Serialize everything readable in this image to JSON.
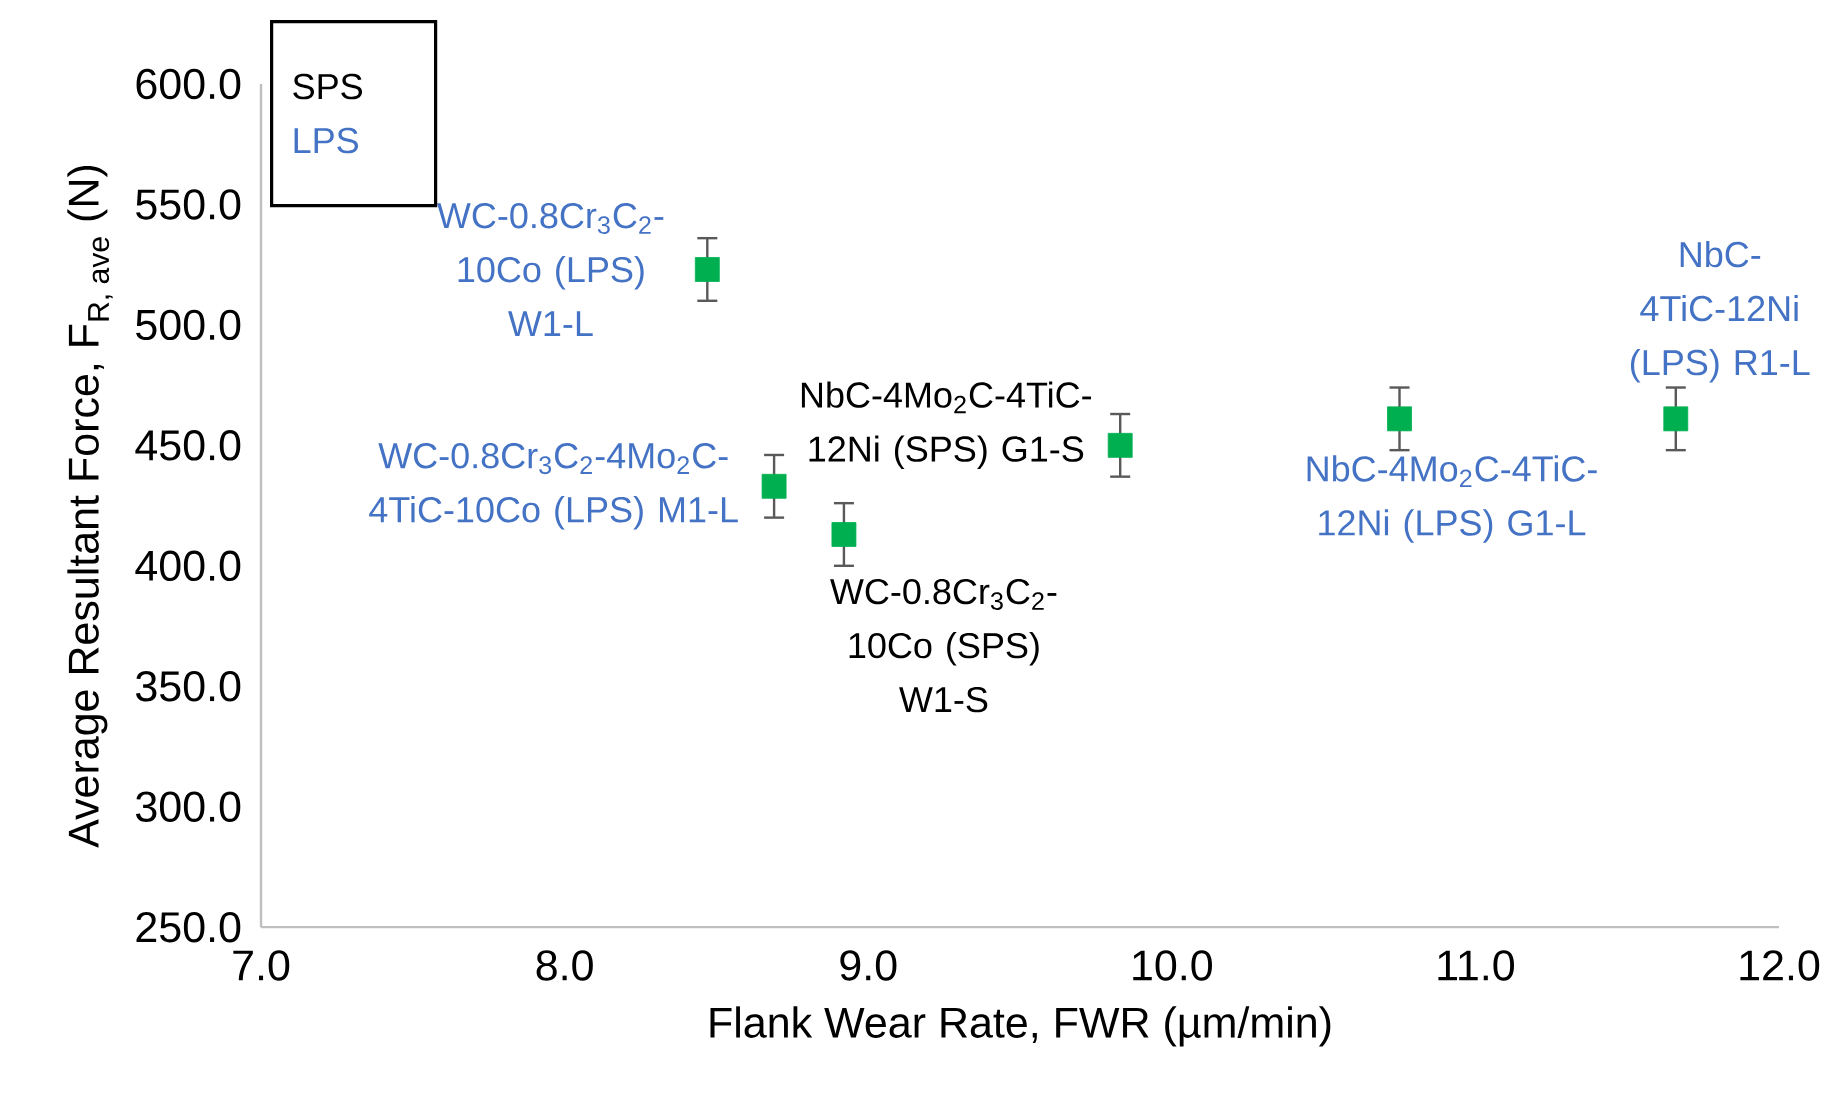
{
  "chart_data": {
    "type": "scatter",
    "xlabel": "Flank Wear Rate, FWR (µm/min)",
    "ylabel": "\\text{Average Resultant Force, F}_{\\text{R, ave}}\\text{ (N)}",
    "x": [
      8.47,
      8.69,
      8.92,
      9.83,
      10.75,
      11.66
    ],
    "series": [
      {
        "color": "#00b050",
        "values": [
          523,
          433,
          413,
          450,
          461,
          461
        ],
        "errors": [
          13,
          13,
          13,
          13,
          13,
          13
        ]
      }
    ],
    "marker": "square",
    "xlim": [
      7,
      12
    ],
    "ylim": [
      250,
      600
    ],
    "xticks": [
      {
        "value": 7,
        "label": "7.0"
      },
      {
        "value": 8,
        "label": "8.0"
      },
      {
        "value": 9,
        "label": "9.0"
      },
      {
        "value": 10,
        "label": "10.0"
      },
      {
        "value": 11,
        "label": "11.0"
      },
      {
        "value": 12,
        "label": "12.0"
      }
    ],
    "yticks": [
      {
        "value": 250,
        "label": "250.0"
      },
      {
        "value": 300,
        "label": "300.0"
      },
      {
        "value": 350,
        "label": "350.0"
      },
      {
        "value": 400,
        "label": "400.0"
      },
      {
        "value": 450,
        "label": "450.0"
      },
      {
        "value": 500,
        "label": "500.0"
      },
      {
        "value": 550,
        "label": "550.0"
      },
      {
        "value": 600,
        "label": "600.0"
      }
    ],
    "annotations": [
      "SPS",
      "LPS",
      {
        "text": "WC-0.8Cr$_{3}$C$_{2}$-10Co (LPS) W1-L",
        "x": 8.47,
        "y": 523
      },
      {
        "text": "WC-0.8Cr$_{3}$C$_{2}$-4Mo$_{2}$C-4TiC-10Co (LPS) M1-L",
        "x": 8.69,
        "y": 433
      },
      {
        "text": "WC-0.8Cr$_{3}$C$_{2}$-10Co (SPS) W1-S",
        "x": 8.92,
        "y": 413
      },
      {
        "text": "NbC-4Mo$_{2}$C-4TiC-12Ni (SPS) G1-S",
        "x": 9.83,
        "y": 450
      },
      {
        "text": "NbC-4Mo$_{2}$C-4TiC-12Ni (LPS) G1-L",
        "x": 10.75,
        "y": 461
      },
      {
        "text": "NbC-4TiC-12Ni (LPS) R1-L",
        "x": 11.66,
        "y": 461
      }
    ]
  }
}
